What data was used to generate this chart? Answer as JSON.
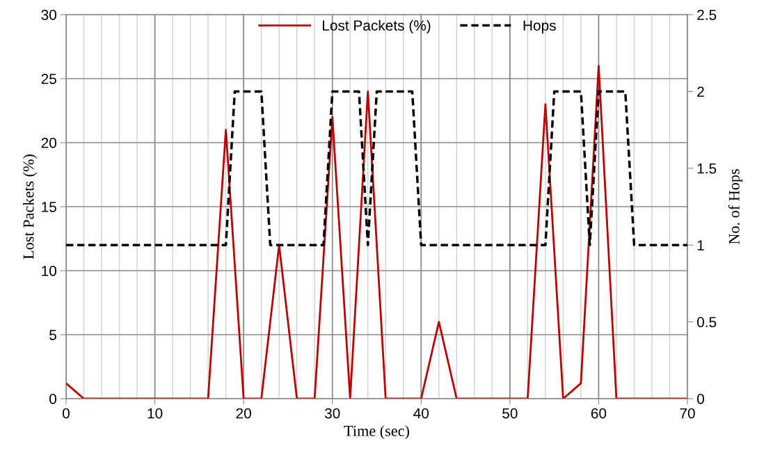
{
  "chart_data": {
    "type": "line",
    "xlabel": "Time (sec)",
    "ylabel": "Lost Packets (%)",
    "y2label": "No. of Hops",
    "xlim": [
      0,
      70
    ],
    "xticks": [
      0,
      10,
      20,
      30,
      40,
      50,
      60,
      70
    ],
    "ylim": [
      0,
      30
    ],
    "yticks": [
      0,
      5,
      10,
      15,
      20,
      25,
      30
    ],
    "y2lim": [
      0,
      2.5
    ],
    "y2ticks": [
      0,
      0.5,
      1,
      1.5,
      2,
      2.5
    ],
    "grid": true,
    "legend": "top",
    "marker": "none",
    "series": [
      {
        "name": "Lost Packets (%)",
        "color": "#c00000",
        "line_style": "solid",
        "x": [
          0,
          2,
          4,
          6,
          8,
          10,
          12,
          14,
          16,
          18,
          20,
          22,
          24,
          26,
          28,
          30,
          32,
          34,
          36,
          38,
          40,
          42,
          44,
          46,
          48,
          50,
          52,
          54,
          56,
          58,
          60,
          62,
          64,
          66,
          68,
          70
        ],
        "values": [
          1.2,
          0,
          0,
          0,
          0,
          0,
          0,
          0,
          0,
          21,
          0,
          0,
          12,
          0,
          0,
          22,
          0,
          24,
          0,
          0,
          0,
          6,
          0,
          0,
          0,
          0,
          0,
          23,
          0,
          1.2,
          26,
          0,
          0,
          0,
          0,
          0
        ]
      },
      {
        "name": "Hops",
        "color": "#000000",
        "line_style": "dashed",
        "axis": "y2",
        "x": [
          0,
          18,
          19,
          22,
          23,
          29,
          30,
          33,
          34,
          35,
          39,
          40,
          54,
          55,
          58,
          59,
          60,
          63,
          64,
          70
        ],
        "values": [
          1,
          1,
          2,
          2,
          1,
          1,
          2,
          2,
          1,
          2,
          2,
          1,
          1,
          2,
          2,
          1,
          2,
          2,
          1,
          1
        ]
      }
    ]
  }
}
